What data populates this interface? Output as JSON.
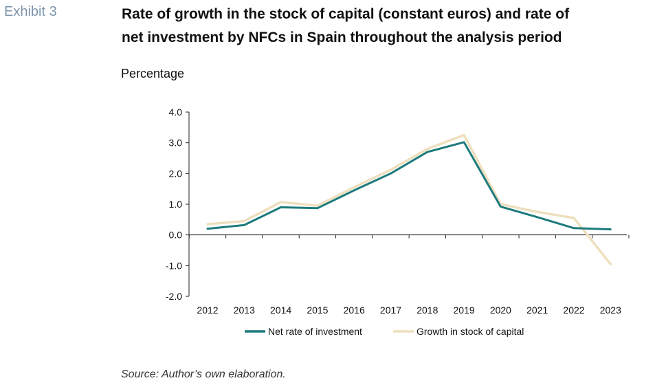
{
  "exhibit_label": "Exhibit 3",
  "title_line1": "Rate of growth in the stock of capital (constant euros) and rate of",
  "title_line2": "net investment by NFCs in Spain throughout the analysis period",
  "subtitle": "Percentage",
  "source": "Source: Author’s own elaboration.",
  "colors": {
    "net_investment": "#1d7a7c",
    "capital_growth": "#eedfbe",
    "axis": "#222222"
  },
  "chart_data": {
    "type": "line",
    "title": "Rate of growth in the stock of capital (constant euros) and rate of net investment by NFCs in Spain throughout the analysis period",
    "ylabel": "Percentage",
    "xlabel": "",
    "ylim": [
      -2.0,
      4.0
    ],
    "yticks": [
      "4.0",
      "3.0",
      "2.0",
      "1.0",
      "0.0",
      "-1.0",
      "-2.0"
    ],
    "categories": [
      "2012",
      "2013",
      "2014",
      "2015",
      "2016",
      "2017",
      "2018",
      "2019",
      "2020",
      "2021",
      "2022",
      "2023"
    ],
    "series": [
      {
        "name": "Net rate of investment",
        "values": [
          0.2,
          0.32,
          0.9,
          0.87,
          1.45,
          2.0,
          2.7,
          3.02,
          0.92,
          0.58,
          0.22,
          0.18
        ]
      },
      {
        "name": "Growth in stock of capital",
        "values": [
          0.35,
          0.45,
          1.07,
          0.95,
          1.55,
          2.12,
          2.8,
          3.25,
          1.0,
          0.75,
          0.55,
          -0.95
        ]
      }
    ],
    "legend_position": "bottom",
    "grid": false
  }
}
